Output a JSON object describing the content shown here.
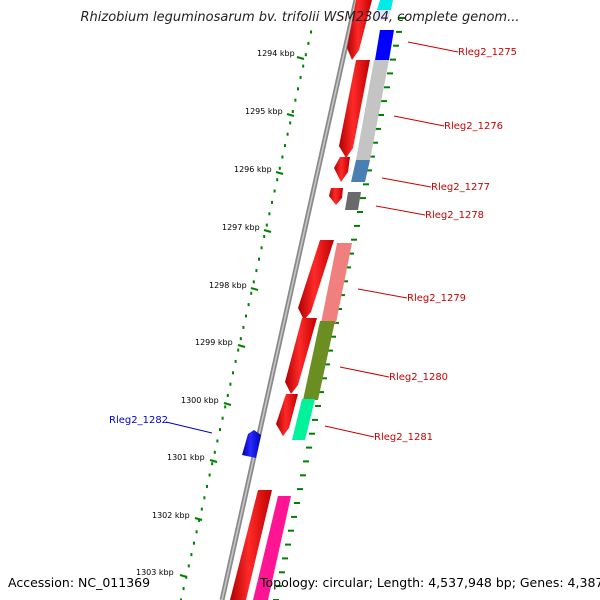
{
  "title": "Rhizobium leguminosarum bv. trifolii WSM2304, complete genom...",
  "footer": {
    "accession": "Accession: NC_011369",
    "summary": "Topology: circular; Length: 4,537,948 bp; Genes: 4,387"
  },
  "scale_labels": [
    "1294 kbp",
    "1295 kbp",
    "1296 kbp",
    "1297 kbp",
    "1298 kbp",
    "1299 kbp",
    "1300 kbp",
    "1301 kbp",
    "1302 kbp",
    "1303 kbp"
  ],
  "gene_labels": [
    {
      "text": "Rleg2_1275",
      "color": "#cc0000"
    },
    {
      "text": "Rleg2_1276",
      "color": "#cc0000"
    },
    {
      "text": "Rleg2_1277",
      "color": "#cc0000"
    },
    {
      "text": "Rleg2_1278",
      "color": "#cc0000"
    },
    {
      "text": "Rleg2_1279",
      "color": "#cc0000"
    },
    {
      "text": "Rleg2_1280",
      "color": "#cc0000"
    },
    {
      "text": "Rleg2_1281",
      "color": "#cc0000"
    },
    {
      "text": "Rleg2_1282",
      "color": "#0000cc"
    }
  ],
  "colors": {
    "cds": "#ff0000",
    "reverse_gene": "#0000ff",
    "backbone": "#888888",
    "ticks": "#008000",
    "cog_cyan": "#00ffff",
    "cog_blue": "#0000ff",
    "cog_silver": "#c0c0c0",
    "cog_steel": "#4682b4",
    "cog_gray": "#666666",
    "cog_salmon": "#f08080",
    "cog_olive": "#6b8e23",
    "cog_green": "#00fa9a",
    "cog_pink": "#ff1493"
  }
}
